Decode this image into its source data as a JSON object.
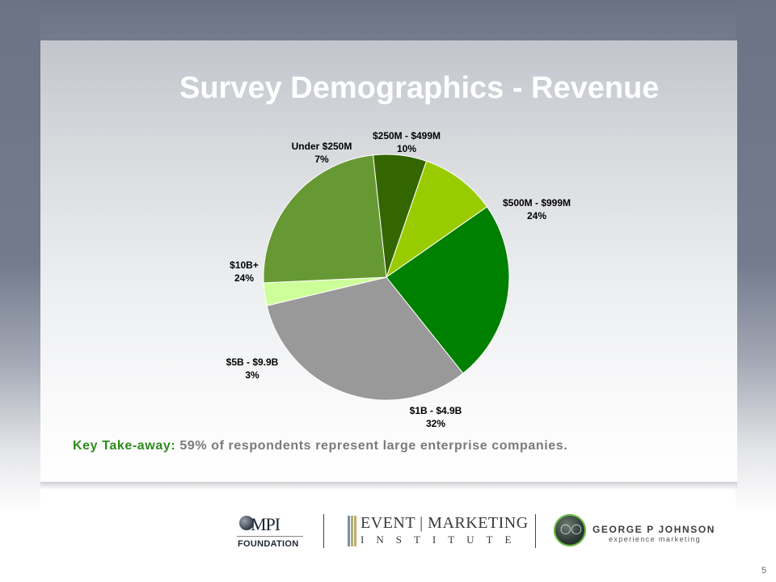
{
  "title": "Survey Demographics - Revenue",
  "chart_data": {
    "type": "pie",
    "title": "",
    "start_angle_deg": 19,
    "direction": "clockwise",
    "slices": [
      {
        "label": "$250M - $499M",
        "percent_label": "10%",
        "value": 10,
        "color": "#99cc00"
      },
      {
        "label": "$500M - $999M",
        "percent_label": "24%",
        "value": 24,
        "color": "#008000"
      },
      {
        "label": "$1B - $4.9B",
        "percent_label": "32%",
        "value": 32,
        "color": "#999999"
      },
      {
        "label": "$5B - $9.9B",
        "percent_label": "3%",
        "value": 3,
        "color": "#ccff99"
      },
      {
        "label": "$10B+",
        "percent_label": "24%",
        "value": 24,
        "color": "#669933"
      },
      {
        "label": "Under $250M",
        "percent_label": "7%",
        "value": 7,
        "color": "#336600"
      }
    ]
  },
  "takeaway": {
    "key": "Key Take-away:",
    "text": "59% of respondents represent large enterprise companies."
  },
  "logos": {
    "mpi_mark": "MPI",
    "mpi_sub": "FOUNDATION",
    "emi_top": "EVENT | MARKETING",
    "emi_bottom": "INSTITUTE",
    "gpj_name": "GEORGE P JOHNSON",
    "gpj_sub": "experience marketing"
  },
  "page_number": "5"
}
